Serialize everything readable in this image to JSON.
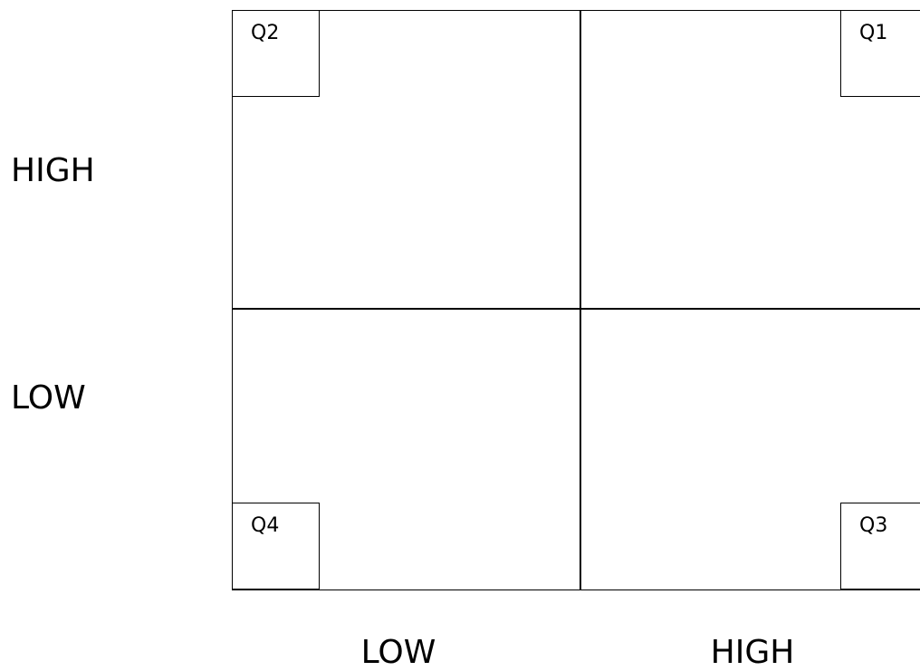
{
  "quadrants": {
    "top_left": "Q2",
    "top_right": "Q1",
    "bottom_left": "Q4",
    "bottom_right": "Q3"
  },
  "y_axis": {
    "high": "HIGH",
    "low": "LOW"
  },
  "x_axis": {
    "low": "LOW",
    "high": "HIGH"
  }
}
